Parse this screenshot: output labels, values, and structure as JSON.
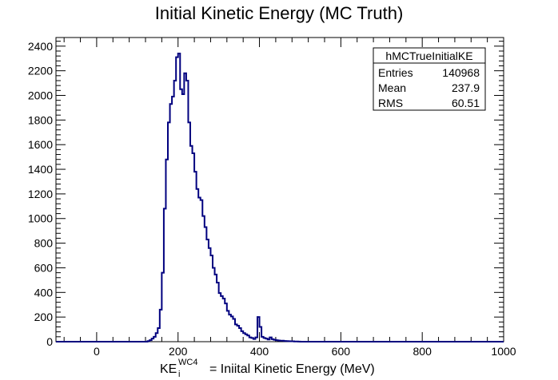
{
  "chart_data": {
    "type": "line",
    "style": "step-histogram",
    "title": "Initial Kinetic Energy (MC Truth)",
    "xlabel_base": "KE",
    "xlabel_sub": "i",
    "xlabel_sup": "WC4",
    "xlabel_rest": "=  Iniital Kinetic Energy (MeV)",
    "ylabel": "",
    "xlim": [
      -100,
      1000
    ],
    "ylim": [
      0,
      2470
    ],
    "x_ticks": [
      "0",
      "200",
      "400",
      "600",
      "800",
      "1000"
    ],
    "x_tick_values": [
      0,
      200,
      400,
      600,
      800,
      1000
    ],
    "y_ticks": [
      "0",
      "200",
      "400",
      "600",
      "800",
      "1000",
      "1200",
      "1400",
      "1600",
      "1800",
      "2000",
      "2200",
      "2400"
    ],
    "y_tick_values": [
      0,
      200,
      400,
      600,
      800,
      1000,
      1200,
      1400,
      1600,
      1800,
      2000,
      2200,
      2400
    ],
    "line_color": "#00007f",
    "grid": false,
    "series": [
      {
        "bin_width": 5,
        "x": [
          -100,
          125,
          130,
          135,
          140,
          145,
          150,
          155,
          160,
          165,
          170,
          175,
          180,
          185,
          190,
          195,
          200,
          205,
          210,
          215,
          220,
          225,
          230,
          235,
          240,
          245,
          250,
          255,
          260,
          265,
          270,
          275,
          280,
          285,
          290,
          295,
          300,
          305,
          310,
          315,
          320,
          325,
          330,
          335,
          340,
          345,
          350,
          355,
          360,
          365,
          370,
          375,
          380,
          385,
          390,
          395,
          400,
          405,
          410,
          415,
          420,
          425,
          430,
          435,
          440,
          445,
          450,
          455,
          460,
          465,
          470,
          475,
          480,
          485,
          490,
          495,
          500
        ],
        "y": [
          0,
          5,
          12,
          25,
          40,
          70,
          110,
          260,
          560,
          1080,
          1480,
          1780,
          1930,
          1990,
          2120,
          2310,
          2340,
          2050,
          2010,
          2180,
          2120,
          1780,
          1590,
          1530,
          1380,
          1240,
          1170,
          1150,
          1020,
          930,
          830,
          760,
          700,
          600,
          545,
          480,
          395,
          370,
          350,
          310,
          250,
          220,
          205,
          185,
          140,
          130,
          110,
          85,
          70,
          60,
          50,
          35,
          30,
          22,
          35,
          200,
          120,
          40,
          30,
          25,
          18,
          35,
          20,
          15,
          12,
          10,
          8,
          8,
          6,
          5,
          4,
          3,
          3,
          2,
          2,
          1,
          0
        ]
      }
    ]
  },
  "stats_box": {
    "name": "hMCTrueInitialKE",
    "rows": [
      {
        "label": "Entries",
        "value": "140968"
      },
      {
        "label": "Mean",
        "value": "237.9"
      },
      {
        "label": "RMS",
        "value": "60.51"
      }
    ]
  }
}
